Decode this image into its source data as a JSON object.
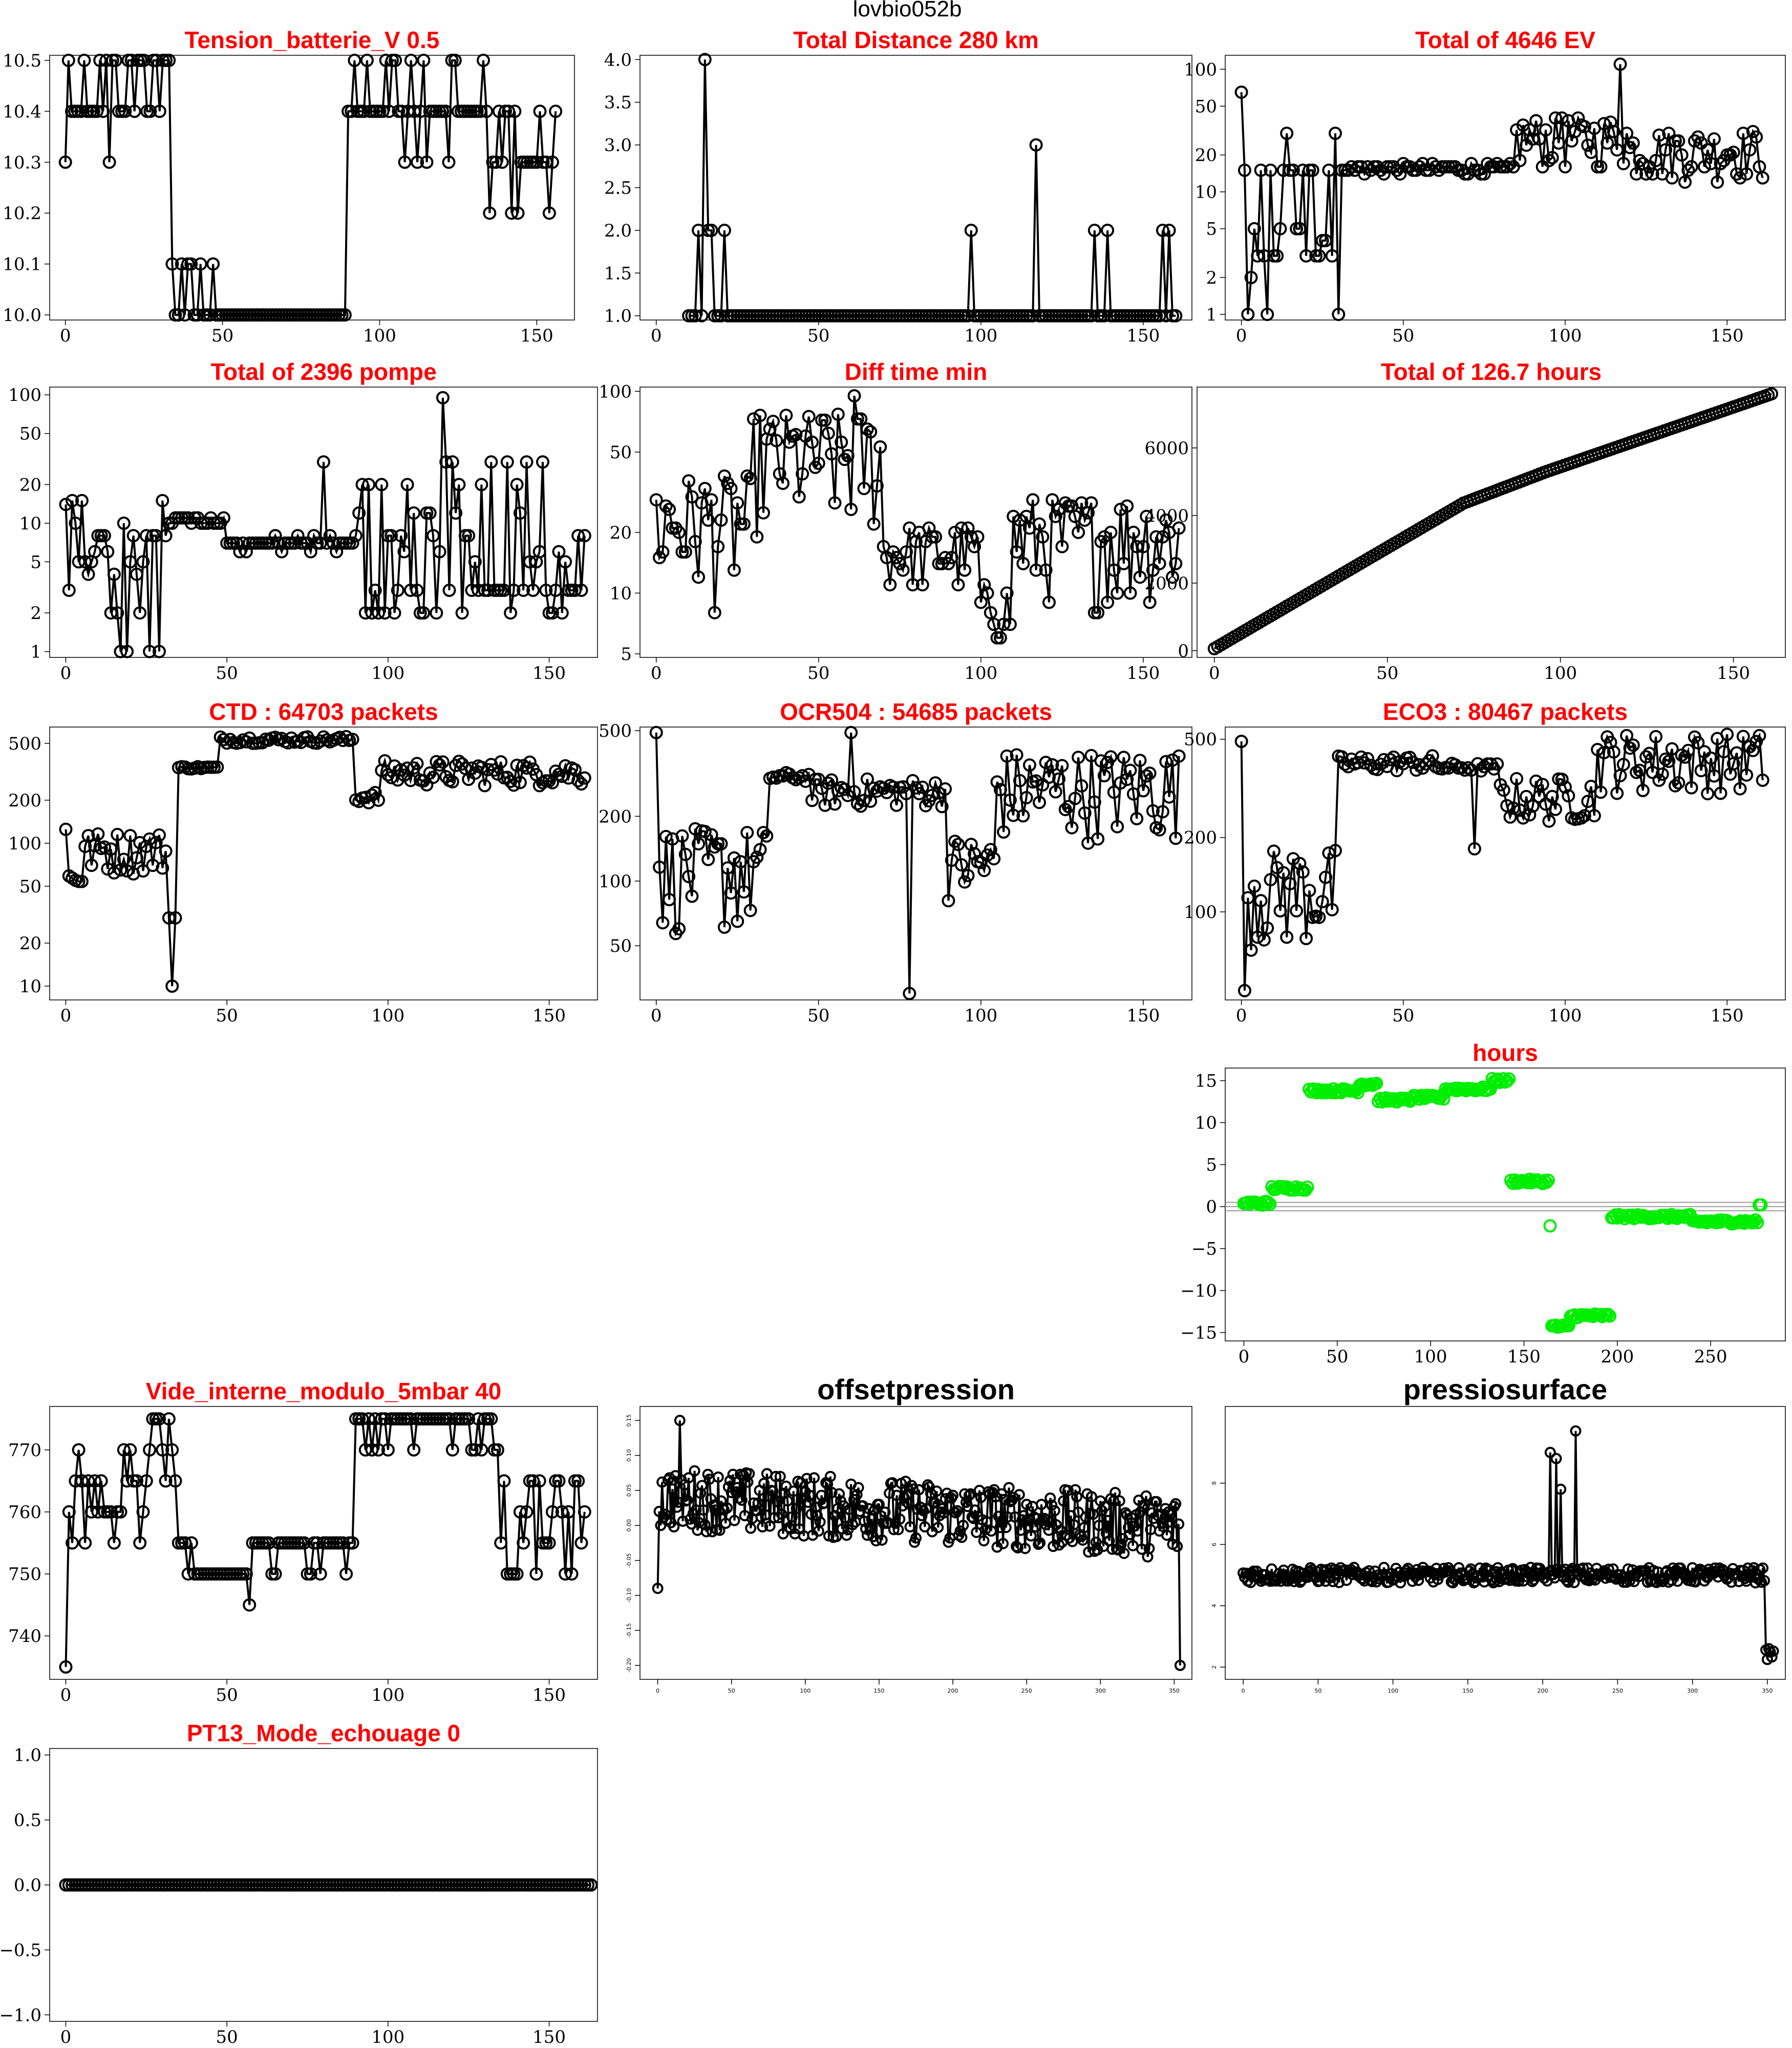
{
  "figure": {
    "suptitle": "lovbio052b"
  },
  "chart_data": [
    {
      "type": "line",
      "title": "Tension_batterie_V 0.5",
      "title_color": "#ff0000",
      "marker": "open-circle",
      "xlim": [
        -5,
        162
      ],
      "ylim": [
        9.99,
        10.51
      ],
      "log_y": false,
      "xticks": [
        0,
        50,
        100,
        150
      ],
      "yticks": [
        10.0,
        10.1,
        10.2,
        10.3,
        10.4,
        10.5
      ],
      "ytick_labels": [
        "10.0",
        "10.1",
        "10.2",
        "10.3",
        "10.4",
        "10.5"
      ],
      "series": [
        {
          "color": "#000000",
          "gen": {
            "kind": "segments",
            "n": 157,
            "noise": 0.05,
            "step": 0.1,
            "segs": [
              [
                0,
                34,
                10.4
              ],
              [
                34,
                90,
                10.0
              ],
              [
                90,
                135,
                10.4
              ],
              [
                135,
                157,
                10.3
              ]
            ]
          }
        }
      ]
    },
    {
      "type": "line",
      "title": "Total Distance  280  km",
      "title_color": "#ff0000",
      "marker": "open-circle",
      "xlim": [
        -5,
        165
      ],
      "ylim": [
        0.95,
        4.05
      ],
      "log_y": false,
      "xticks": [
        0,
        50,
        100,
        150
      ],
      "yticks": [
        1.0,
        1.5,
        2.0,
        2.5,
        3.0,
        3.5,
        4.0
      ],
      "ytick_labels": [
        "1.0",
        "1.5",
        "2.0",
        "2.5",
        "3.0",
        "3.5",
        "4.0"
      ],
      "series": [
        {
          "color": "#000000",
          "gen": {
            "kind": "distance",
            "start": 10,
            "end": 160
          }
        }
      ]
    },
    {
      "type": "line",
      "title": "Total of  4646  EV",
      "title_color": "#ff0000",
      "marker": "open-circle",
      "xlim": [
        -5,
        168
      ],
      "ylim": [
        0.9,
        130
      ],
      "log_y": true,
      "xticks": [
        0,
        50,
        100,
        150
      ],
      "yticks": [
        1,
        2,
        5,
        10,
        20,
        50,
        100
      ],
      "ytick_labels": [
        "1",
        "2",
        "5",
        "10",
        "20",
        "50",
        "100"
      ],
      "series": [
        {
          "color": "#000000",
          "gen": {
            "kind": "ev",
            "n": 162
          }
        }
      ]
    },
    {
      "type": "line",
      "title": "Total of  2396  pompe",
      "title_color": "#ff0000",
      "marker": "open-circle",
      "xlim": [
        -5,
        165
      ],
      "ylim": [
        0.9,
        115
      ],
      "log_y": true,
      "xticks": [
        0,
        50,
        100,
        150
      ],
      "yticks": [
        1,
        2,
        5,
        10,
        20,
        50,
        100
      ],
      "ytick_labels": [
        "1",
        "2",
        "5",
        "10",
        "20",
        "50",
        "100"
      ],
      "series": [
        {
          "color": "#000000",
          "gen": {
            "kind": "pompe",
            "n": 162
          }
        }
      ]
    },
    {
      "type": "line",
      "title": "Diff time min",
      "title_color": "#ff0000",
      "marker": "open-circle",
      "xlim": [
        -5,
        165
      ],
      "ylim": [
        4.8,
        105
      ],
      "log_y": true,
      "xticks": [
        0,
        50,
        100,
        150
      ],
      "yticks": [
        5,
        10,
        20,
        50,
        100
      ],
      "ytick_labels": [
        "5",
        "10",
        "20",
        "50",
        "100"
      ],
      "series": [
        {
          "color": "#000000",
          "gen": {
            "kind": "difftime",
            "n": 162
          }
        }
      ]
    },
    {
      "type": "line",
      "title": "Total of  126.7  hours",
      "title_color": "#ff0000",
      "marker": "open-circle",
      "xlim": [
        -5,
        165
      ],
      "ylim": [
        -200,
        7800
      ],
      "log_y": false,
      "xticks": [
        0,
        50,
        100,
        150
      ],
      "yticks": [
        0,
        2000,
        4000,
        6000
      ],
      "ytick_labels": [
        "0",
        "2000",
        "4000",
        "6000"
      ],
      "series": [
        {
          "color": "#000000",
          "gen": {
            "kind": "cumhours",
            "n": 162,
            "total": 7600
          }
        }
      ]
    },
    {
      "type": "line",
      "title": "CTD  : 64703  packets",
      "title_color": "#ff0000",
      "marker": "open-circle",
      "xlim": [
        -5,
        165
      ],
      "ylim": [
        8,
        650
      ],
      "log_y": true,
      "xticks": [
        0,
        50,
        100,
        150
      ],
      "yticks": [
        10,
        20,
        50,
        100,
        200,
        500
      ],
      "ytick_labels": [
        "10",
        "20",
        "50",
        "100",
        "200",
        "500"
      ],
      "series": [
        {
          "color": "#000000",
          "gen": {
            "kind": "ctd",
            "n": 162
          }
        }
      ]
    },
    {
      "type": "line",
      "title": "OCR504  : 54685  packets",
      "title_color": "#ff0000",
      "marker": "open-circle",
      "xlim": [
        -5,
        165
      ],
      "ylim": [
        28,
        520
      ],
      "log_y": true,
      "xticks": [
        0,
        50,
        100,
        150
      ],
      "yticks": [
        50,
        100,
        200,
        500
      ],
      "ytick_labels": [
        "50",
        "100",
        "200",
        "500"
      ],
      "series": [
        {
          "color": "#000000",
          "gen": {
            "kind": "ocr",
            "n": 162
          }
        }
      ]
    },
    {
      "type": "line",
      "title": "ECO3  : 80467  packets",
      "title_color": "#ff0000",
      "marker": "open-circle",
      "xlim": [
        -5,
        168
      ],
      "ylim": [
        44,
        560
      ],
      "log_y": true,
      "xticks": [
        0,
        50,
        100,
        150
      ],
      "yticks": [
        100,
        200,
        500
      ],
      "ytick_labels": [
        "100",
        "200",
        "500"
      ],
      "series": [
        {
          "color": "#000000",
          "gen": {
            "kind": "eco",
            "n": 162
          }
        }
      ]
    },
    {
      "type": "scatter",
      "title": "hours",
      "title_color": "#ff0000",
      "marker": "open-circle",
      "xlim": [
        -10,
        290
      ],
      "ylim": [
        -16,
        16.5
      ],
      "log_y": false,
      "xticks": [
        0,
        50,
        100,
        150,
        200,
        250
      ],
      "yticks": [
        -15,
        -10,
        -5,
        0,
        5,
        10,
        15
      ],
      "ytick_labels": [
        "−15",
        "−10",
        "−5",
        "0",
        "5",
        "10",
        "15"
      ],
      "hlines": [
        -0.5,
        0,
        0.5
      ],
      "series": [
        {
          "color": "#00ee00",
          "gen": {
            "kind": "hours",
            "n": 278
          }
        }
      ]
    },
    {
      "type": "line",
      "title": "Vide_interne_modulo_5mbar 40",
      "title_color": "#ff0000",
      "marker": "open-circle",
      "xlim": [
        -5,
        165
      ],
      "ylim": [
        733,
        777
      ],
      "log_y": false,
      "xticks": [
        0,
        50,
        100,
        150
      ],
      "yticks": [
        740,
        750,
        760,
        770
      ],
      "ytick_labels": [
        "740",
        "750",
        "760",
        "770"
      ],
      "series": [
        {
          "color": "#000000",
          "gen": {
            "kind": "vide",
            "n": 162
          }
        }
      ]
    },
    {
      "type": "line",
      "title": "offsetpression",
      "title_color": "#000000",
      "marker": "open-circle",
      "xlim": [
        -12,
        362
      ],
      "ylim": [
        -0.22,
        0.17
      ],
      "log_y": false,
      "xticks": [
        0,
        50,
        100,
        150,
        200,
        250,
        300,
        350
      ],
      "yticks": [
        -0.2,
        -0.15,
        -0.1,
        -0.05,
        0.0,
        0.05,
        0.1,
        0.15
      ],
      "ytick_labels": [
        "-0.20",
        "-0.15",
        "-0.10",
        "-0.05",
        "0.00",
        "0.05",
        "0.10",
        "0.15"
      ],
      "small_ticks": true,
      "series": [
        {
          "color": "#000000",
          "gen": {
            "kind": "offset",
            "n": 355
          }
        }
      ]
    },
    {
      "type": "line",
      "title": "pressiosurface",
      "title_color": "#000000",
      "marker": "open-circle",
      "xlim": [
        -12,
        362
      ],
      "ylim": [
        1.6,
        10.5
      ],
      "log_y": false,
      "xticks": [
        0,
        50,
        100,
        150,
        200,
        250,
        300,
        350
      ],
      "yticks": [
        2,
        4,
        6,
        8
      ],
      "ytick_labels": [
        "2",
        "4",
        "6",
        "8"
      ],
      "small_ticks": true,
      "series": [
        {
          "color": "#000000",
          "gen": {
            "kind": "pressio",
            "n": 355
          }
        }
      ]
    },
    {
      "type": "line",
      "title": "PT13_Mode_echouage  0",
      "title_color": "#ff0000",
      "marker": "open-circle",
      "xlim": [
        -5,
        165
      ],
      "ylim": [
        -1.05,
        1.05
      ],
      "log_y": false,
      "xticks": [
        0,
        50,
        100,
        150
      ],
      "yticks": [
        -1.0,
        -0.5,
        0.0,
        0.5,
        1.0
      ],
      "ytick_labels": [
        "−1.0",
        "−0.5",
        "0.0",
        "0.5",
        "1.0"
      ],
      "series": [
        {
          "color": "#000000",
          "gen": {
            "kind": "constant",
            "n": 164,
            "value": 0
          }
        }
      ]
    }
  ]
}
